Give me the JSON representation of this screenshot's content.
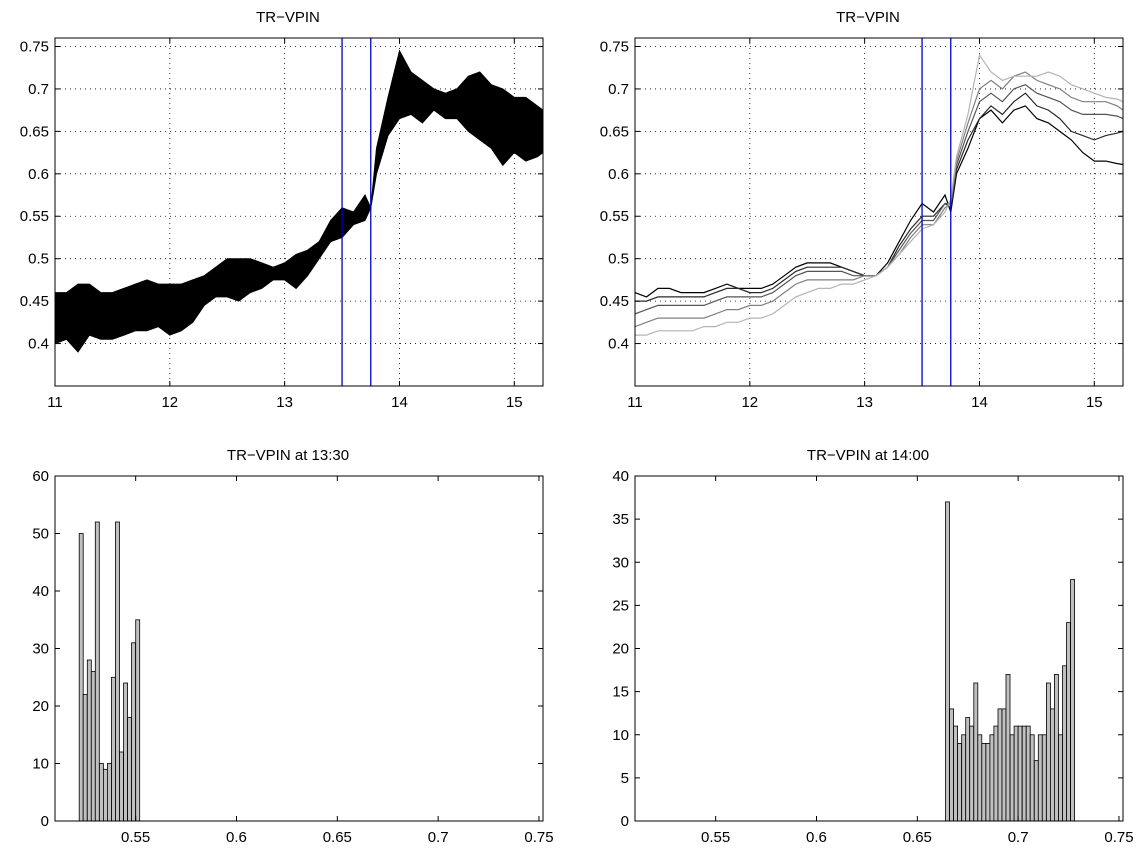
{
  "chart_data": [
    {
      "type": "area",
      "title": "TR−VPIN",
      "xlabel": "",
      "ylabel": "",
      "xlim": [
        11,
        15.25
      ],
      "ylim": [
        0.35,
        0.76
      ],
      "xticks": [
        "11",
        "12",
        "13",
        "14",
        "15"
      ],
      "yticks": [
        "0.4",
        "0.45",
        "0.5",
        "0.55",
        "0.6",
        "0.65",
        "0.7",
        "0.75"
      ],
      "grid": true,
      "vlines": [
        13.5,
        13.75
      ],
      "vline_color": "#0000cc",
      "band_color": "#000000",
      "x": [
        11.0,
        11.1,
        11.2,
        11.3,
        11.4,
        11.5,
        11.6,
        11.7,
        11.8,
        11.9,
        12.0,
        12.1,
        12.2,
        12.3,
        12.4,
        12.5,
        12.6,
        12.7,
        12.8,
        12.9,
        13.0,
        13.1,
        13.2,
        13.3,
        13.4,
        13.5,
        13.6,
        13.7,
        13.75,
        13.8,
        13.9,
        14.0,
        14.1,
        14.2,
        14.3,
        14.4,
        14.5,
        14.6,
        14.7,
        14.8,
        14.9,
        15.0,
        15.1,
        15.2,
        15.25
      ],
      "upper": [
        0.46,
        0.46,
        0.47,
        0.47,
        0.46,
        0.46,
        0.465,
        0.47,
        0.475,
        0.47,
        0.47,
        0.47,
        0.475,
        0.48,
        0.49,
        0.5,
        0.5,
        0.5,
        0.495,
        0.49,
        0.495,
        0.505,
        0.51,
        0.52,
        0.545,
        0.56,
        0.555,
        0.575,
        0.56,
        0.63,
        0.69,
        0.745,
        0.72,
        0.71,
        0.7,
        0.695,
        0.7,
        0.715,
        0.72,
        0.705,
        0.7,
        0.69,
        0.69,
        0.68,
        0.675
      ],
      "lower": [
        0.4,
        0.405,
        0.39,
        0.41,
        0.405,
        0.405,
        0.41,
        0.415,
        0.415,
        0.42,
        0.41,
        0.415,
        0.425,
        0.445,
        0.455,
        0.455,
        0.45,
        0.46,
        0.465,
        0.475,
        0.475,
        0.465,
        0.48,
        0.5,
        0.52,
        0.525,
        0.54,
        0.545,
        0.56,
        0.6,
        0.645,
        0.665,
        0.67,
        0.66,
        0.675,
        0.665,
        0.665,
        0.65,
        0.64,
        0.63,
        0.61,
        0.625,
        0.615,
        0.62,
        0.625
      ]
    },
    {
      "type": "line",
      "title": "TR−VPIN",
      "xlabel": "",
      "ylabel": "",
      "xlim": [
        11,
        15.25
      ],
      "ylim": [
        0.35,
        0.76
      ],
      "xticks": [
        "11",
        "12",
        "13",
        "14",
        "15"
      ],
      "yticks": [
        "0.4",
        "0.45",
        "0.5",
        "0.55",
        "0.6",
        "0.65",
        "0.7",
        "0.75"
      ],
      "grid": true,
      "vlines": [
        13.5,
        13.75
      ],
      "vline_color": "#0000cc",
      "x": [
        11.0,
        11.1,
        11.2,
        11.3,
        11.4,
        11.5,
        11.6,
        11.7,
        11.8,
        11.9,
        12.0,
        12.1,
        12.2,
        12.3,
        12.4,
        12.5,
        12.6,
        12.7,
        12.8,
        12.9,
        13.0,
        13.1,
        13.2,
        13.3,
        13.4,
        13.5,
        13.6,
        13.7,
        13.75,
        13.8,
        13.9,
        14.0,
        14.1,
        14.2,
        14.3,
        14.4,
        14.5,
        14.6,
        14.7,
        14.8,
        14.9,
        15.0,
        15.1,
        15.2,
        15.25
      ],
      "series": [
        {
          "color": "#000000",
          "values": [
            0.46,
            0.455,
            0.465,
            0.465,
            0.46,
            0.46,
            0.46,
            0.465,
            0.47,
            0.465,
            0.465,
            0.465,
            0.47,
            0.48,
            0.49,
            0.495,
            0.495,
            0.495,
            0.49,
            0.485,
            0.48,
            0.48,
            0.495,
            0.52,
            0.545,
            0.565,
            0.555,
            0.575,
            0.555,
            0.6,
            0.63,
            0.665,
            0.675,
            0.66,
            0.675,
            0.68,
            0.665,
            0.66,
            0.65,
            0.64,
            0.625,
            0.615,
            0.615,
            0.612,
            0.611
          ]
        },
        {
          "color": "#2a2a2a",
          "values": [
            0.45,
            0.45,
            0.455,
            0.455,
            0.455,
            0.455,
            0.455,
            0.46,
            0.465,
            0.465,
            0.46,
            0.46,
            0.465,
            0.475,
            0.485,
            0.49,
            0.49,
            0.49,
            0.49,
            0.485,
            0.48,
            0.48,
            0.49,
            0.515,
            0.535,
            0.55,
            0.55,
            0.565,
            0.56,
            0.605,
            0.64,
            0.665,
            0.68,
            0.67,
            0.685,
            0.695,
            0.68,
            0.675,
            0.665,
            0.65,
            0.645,
            0.64,
            0.645,
            0.648,
            0.65
          ]
        },
        {
          "color": "#555555",
          "values": [
            0.435,
            0.44,
            0.445,
            0.445,
            0.445,
            0.445,
            0.445,
            0.45,
            0.455,
            0.455,
            0.455,
            0.455,
            0.46,
            0.47,
            0.48,
            0.485,
            0.485,
            0.485,
            0.485,
            0.48,
            0.48,
            0.48,
            0.49,
            0.51,
            0.53,
            0.545,
            0.545,
            0.565,
            0.565,
            0.61,
            0.65,
            0.685,
            0.695,
            0.685,
            0.7,
            0.705,
            0.695,
            0.69,
            0.685,
            0.675,
            0.67,
            0.67,
            0.67,
            0.668,
            0.665
          ]
        },
        {
          "color": "#808080",
          "values": [
            0.42,
            0.425,
            0.43,
            0.43,
            0.43,
            0.43,
            0.43,
            0.435,
            0.44,
            0.44,
            0.445,
            0.445,
            0.45,
            0.46,
            0.47,
            0.475,
            0.475,
            0.475,
            0.475,
            0.475,
            0.48,
            0.48,
            0.49,
            0.505,
            0.525,
            0.54,
            0.54,
            0.56,
            0.565,
            0.615,
            0.66,
            0.7,
            0.71,
            0.7,
            0.715,
            0.72,
            0.71,
            0.705,
            0.7,
            0.69,
            0.685,
            0.685,
            0.685,
            0.68,
            0.675
          ]
        },
        {
          "color": "#b4b4b4",
          "values": [
            0.41,
            0.41,
            0.415,
            0.415,
            0.415,
            0.415,
            0.42,
            0.42,
            0.425,
            0.425,
            0.43,
            0.43,
            0.435,
            0.445,
            0.455,
            0.46,
            0.465,
            0.465,
            0.47,
            0.47,
            0.475,
            0.48,
            0.49,
            0.505,
            0.52,
            0.535,
            0.54,
            0.555,
            0.57,
            0.62,
            0.67,
            0.74,
            0.72,
            0.71,
            0.715,
            0.715,
            0.715,
            0.72,
            0.715,
            0.705,
            0.7,
            0.695,
            0.69,
            0.688,
            0.685
          ]
        }
      ]
    },
    {
      "type": "bar",
      "title": "TR−VPIN at 13:30",
      "xlabel": "",
      "ylabel": "",
      "xlim": [
        0.51,
        0.752
      ],
      "ylim": [
        0,
        60
      ],
      "xticks": [
        "0.55",
        "0.6",
        "0.65",
        "0.7",
        "0.75"
      ],
      "yticks": [
        "0",
        "10",
        "20",
        "30",
        "40",
        "50",
        "60"
      ],
      "grid": false,
      "bar_color": "#c0c0c0",
      "bin_start": 0.522,
      "bin_width": 0.002,
      "values": [
        50,
        22,
        28,
        26,
        52,
        10,
        9,
        10,
        25,
        52,
        12,
        24,
        18,
        31,
        35
      ]
    },
    {
      "type": "bar",
      "title": "TR−VPIN at 14:00",
      "xlabel": "",
      "ylabel": "",
      "xlim": [
        0.51,
        0.752
      ],
      "ylim": [
        0,
        40
      ],
      "xticks": [
        "0.55",
        "0.6",
        "0.65",
        "0.7",
        "0.75"
      ],
      "yticks": [
        "0",
        "5",
        "10",
        "15",
        "20",
        "25",
        "30",
        "35",
        "40"
      ],
      "grid": false,
      "bar_color": "#c0c0c0",
      "bin_start": 0.664,
      "bin_width": 0.002,
      "values": [
        37,
        13,
        11,
        9,
        10,
        12,
        11,
        16,
        10,
        9,
        9,
        10,
        11,
        13,
        13,
        17,
        10,
        11,
        11,
        11,
        11,
        10,
        7,
        10,
        10,
        16,
        13,
        17,
        10,
        18,
        23,
        28
      ]
    }
  ]
}
